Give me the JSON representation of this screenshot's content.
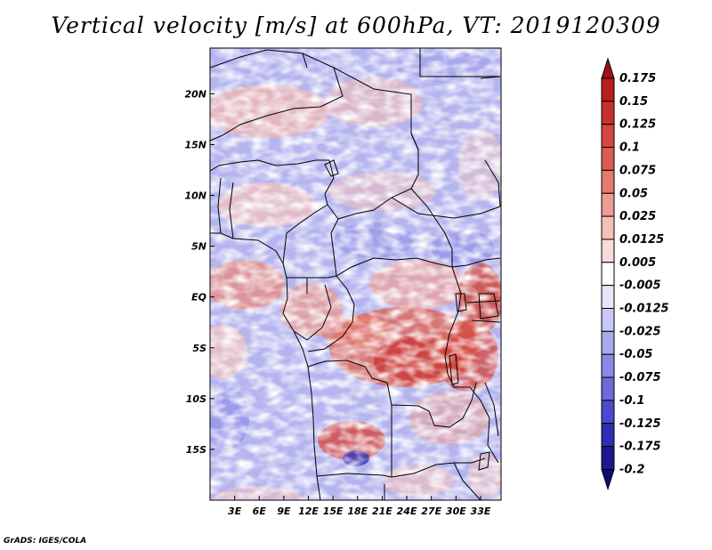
{
  "title": "Vertical velocity [m/s] at 600hPa, VT: 2019120309",
  "credit": "GrADS: IGES/COLA",
  "chart_data": {
    "type": "heatmap",
    "title": "Vertical velocity [m/s] at 600hPa, VT: 2019120309",
    "variable": "vertical velocity",
    "units": "m/s",
    "level": "600hPa",
    "valid_time": "2019120309",
    "lon_range": [
      0,
      35.5
    ],
    "lat_range": [
      -20,
      24.5
    ],
    "x_ticks": [
      {
        "value": 3,
        "label": "3E"
      },
      {
        "value": 6,
        "label": "6E"
      },
      {
        "value": 9,
        "label": "9E"
      },
      {
        "value": 12,
        "label": "12E"
      },
      {
        "value": 15,
        "label": "15E"
      },
      {
        "value": 18,
        "label": "18E"
      },
      {
        "value": 21,
        "label": "21E"
      },
      {
        "value": 24,
        "label": "24E"
      },
      {
        "value": 27,
        "label": "27E"
      },
      {
        "value": 30,
        "label": "30E"
      },
      {
        "value": 33,
        "label": "33E"
      }
    ],
    "y_ticks": [
      {
        "value": 20,
        "label": "20N"
      },
      {
        "value": 15,
        "label": "15N"
      },
      {
        "value": 10,
        "label": "10N"
      },
      {
        "value": 5,
        "label": "5N"
      },
      {
        "value": 0,
        "label": "EQ"
      },
      {
        "value": -5,
        "label": "5S"
      },
      {
        "value": -10,
        "label": "10S"
      },
      {
        "value": -15,
        "label": "15S"
      }
    ],
    "colorbar": {
      "labels": [
        "0.175",
        "0.15",
        "0.125",
        "0.1",
        "0.075",
        "0.05",
        "0.025",
        "0.0125",
        "0.005",
        "-0.005",
        "-0.0125",
        "-0.025",
        "-0.05",
        "-0.075",
        "-0.1",
        "-0.125",
        "-0.175",
        "-0.2"
      ],
      "colors": [
        "#a00f16",
        "#b81d1f",
        "#c9302c",
        "#d4463e",
        "#dc5c52",
        "#e47a70",
        "#ec9c92",
        "#f4c0b9",
        "#fadcd7",
        "#ffffff",
        "#e6e6fb",
        "#c9c9f4",
        "#a9a9ee",
        "#8a8ae6",
        "#6b6bdc",
        "#4b4bcc",
        "#2e2eb2",
        "#1a1a8e",
        "#0d0d70"
      ]
    }
  }
}
